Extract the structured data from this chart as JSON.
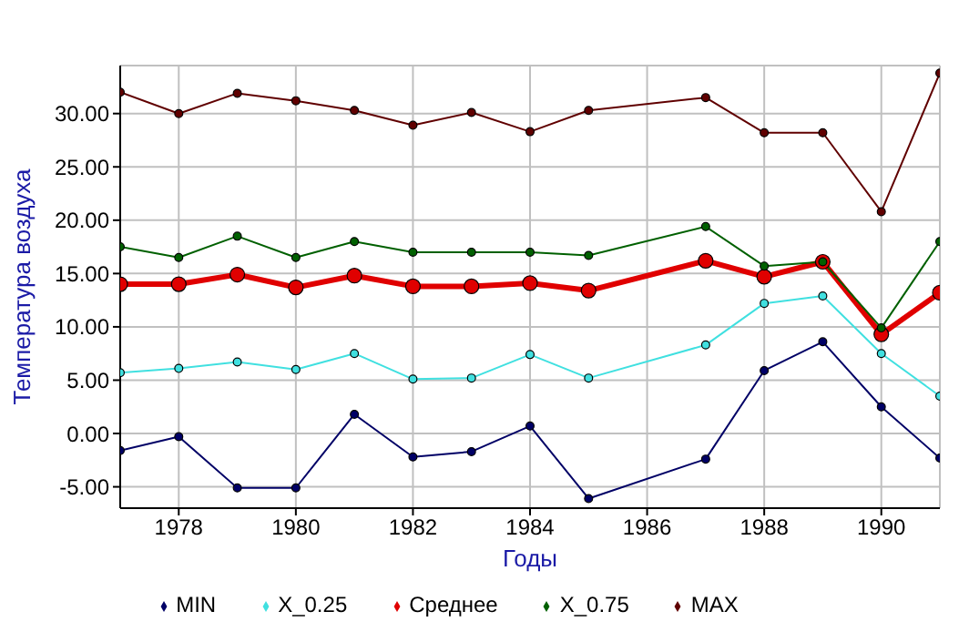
{
  "chart_data": {
    "type": "line",
    "xlabel": "Годы",
    "ylabel": "Температура воздуха",
    "x": [
      1977,
      1978,
      1979,
      1980,
      1981,
      1982,
      1983,
      1984,
      1985,
      1987,
      1988,
      1989,
      1990,
      1991
    ],
    "xlim": [
      1977,
      1991
    ],
    "xticks": [
      1978,
      1980,
      1982,
      1984,
      1986,
      1988,
      1990
    ],
    "ylim": [
      -7,
      34.5
    ],
    "yticks": [
      {
        "value": -5,
        "label": "-5.00"
      },
      {
        "value": 0,
        "label": "0.00"
      },
      {
        "value": 5,
        "label": "5.00"
      },
      {
        "value": 10,
        "label": "10.00"
      },
      {
        "value": 15,
        "label": "15.00"
      },
      {
        "value": 20,
        "label": "20.00"
      },
      {
        "value": 25,
        "label": "25.00"
      },
      {
        "value": 30,
        "label": "30.00"
      }
    ],
    "grid": true,
    "legend": "bottom",
    "marker": "circle",
    "series": [
      {
        "name": "MIN",
        "color": "#000066",
        "values": [
          -1.6,
          -0.3,
          -5.1,
          -5.1,
          1.8,
          -2.2,
          -1.7,
          0.7,
          -6.1,
          -2.4,
          5.9,
          8.6,
          2.5,
          -2.3
        ]
      },
      {
        "name": "X_0.25",
        "color": "#40e0e0",
        "values": [
          5.7,
          6.1,
          6.7,
          6.0,
          7.5,
          5.1,
          5.2,
          7.4,
          5.2,
          8.3,
          12.2,
          12.9,
          7.5,
          3.5
        ]
      },
      {
        "name": "Среднее",
        "color": "#e00000",
        "values": [
          14.0,
          14.0,
          14.9,
          13.7,
          14.8,
          13.8,
          13.8,
          14.1,
          13.4,
          16.2,
          14.7,
          16.1,
          9.3,
          13.2
        ]
      },
      {
        "name": "X_0.75",
        "color": "#006000",
        "values": [
          17.5,
          16.5,
          18.5,
          16.5,
          18.0,
          17.0,
          17.0,
          17.0,
          16.7,
          19.4,
          15.7,
          16.1,
          9.9,
          18.0
        ]
      },
      {
        "name": "MAX",
        "color": "#600000",
        "values": [
          32.0,
          30.0,
          31.9,
          31.2,
          30.3,
          28.9,
          30.1,
          28.3,
          30.3,
          31.5,
          28.2,
          28.2,
          20.8,
          33.8
        ]
      }
    ]
  }
}
